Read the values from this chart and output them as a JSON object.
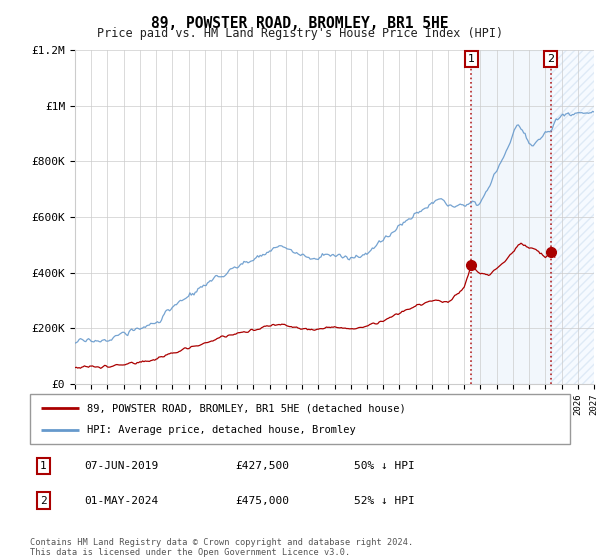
{
  "title": "89, POWSTER ROAD, BROMLEY, BR1 5HE",
  "subtitle": "Price paid vs. HM Land Registry's House Price Index (HPI)",
  "legend_line1": "89, POWSTER ROAD, BROMLEY, BR1 5HE (detached house)",
  "legend_line2": "HPI: Average price, detached house, Bromley",
  "transaction1_num": "1",
  "transaction1_date": "07-JUN-2019",
  "transaction1_price": "£427,500",
  "transaction1_hpi": "50% ↓ HPI",
  "transaction2_num": "2",
  "transaction2_date": "01-MAY-2024",
  "transaction2_price": "£475,000",
  "transaction2_hpi": "52% ↓ HPI",
  "footnote": "Contains HM Land Registry data © Crown copyright and database right 2024.\nThis data is licensed under the Open Government Licence v3.0.",
  "xmin": 1995,
  "xmax": 2027,
  "ymin": 0,
  "ymax": 1200000,
  "yticks": [
    0,
    200000,
    400000,
    600000,
    800000,
    1000000,
    1200000
  ],
  "ytick_labels": [
    "£0",
    "£200K",
    "£400K",
    "£600K",
    "£800K",
    "£1M",
    "£1.2M"
  ],
  "red_line_color": "#aa0000",
  "blue_line_color": "#6699cc",
  "marker1_x": 2019.44,
  "marker1_y": 427500,
  "marker2_x": 2024.33,
  "marker2_y": 475000,
  "shade_start": 2019.44,
  "shade_end": 2024.33,
  "hatch_start": 2024.33,
  "hatch_end": 2027,
  "background_color": "#ffffff",
  "grid_color": "#cccccc"
}
